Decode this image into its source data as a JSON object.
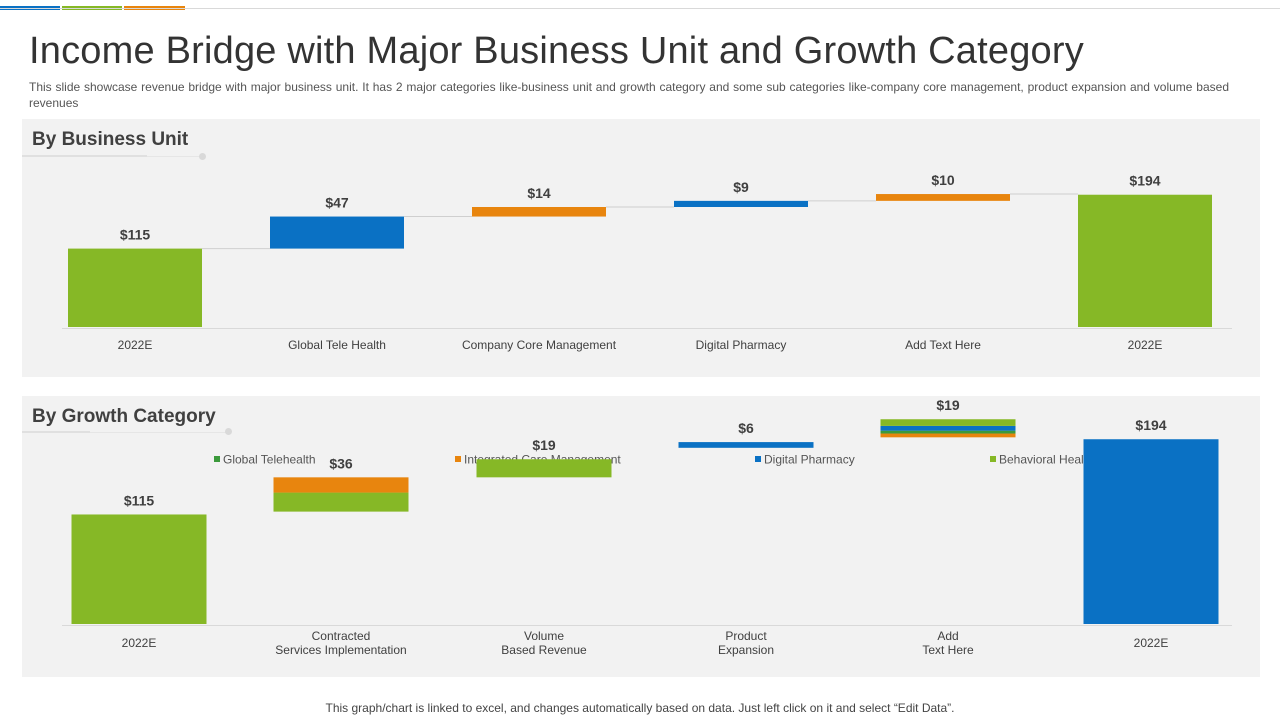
{
  "header": {
    "title": "Income Bridge with Major Business Unit and Growth Category",
    "subtitle": "This slide showcase revenue  bridge with major business unit. It has 2 major categories like-business unit and growth category and some sub categories like-company core management, product expansion and volume  based revenues"
  },
  "colors": {
    "green": "#86b826",
    "blue": "#0a71c4",
    "orange": "#e8850e",
    "dark_green": "#3c9a3c",
    "panel_bg": "#f2f2f2"
  },
  "chart_data": [
    {
      "type": "bar",
      "subtype": "waterfall",
      "title": "By Business Unit",
      "ylim": [
        0,
        220
      ],
      "categories": [
        "2022E",
        "Global Tele Health",
        "Company Core Management",
        "Digital Pharmacy",
        "Add Text Here",
        "2022E"
      ],
      "values": [
        115,
        47,
        14,
        9,
        10,
        194
      ],
      "labels": [
        "$115",
        "$47",
        "$14",
        "$9",
        "$10",
        "$194"
      ],
      "kinds": [
        "total",
        "delta",
        "delta",
        "delta",
        "delta",
        "total"
      ],
      "bar_colors": [
        "green",
        "blue",
        "orange",
        "blue",
        "orange",
        "green"
      ]
    },
    {
      "type": "bar",
      "subtype": "stacked-waterfall",
      "title": "By Growth Category",
      "ylim": [
        0,
        210
      ],
      "legend": [
        {
          "name": "Global Telehealth",
          "color": "dark_green"
        },
        {
          "name": "Integrated Care Management",
          "color": "orange"
        },
        {
          "name": "Digital Pharmacy",
          "color": "blue"
        },
        {
          "name": "Behavioral Health",
          "color": "green"
        }
      ],
      "categories": [
        [
          "2022E"
        ],
        [
          "Contracted",
          "Services Implementation"
        ],
        [
          "Volume",
          "Based Revenue"
        ],
        [
          "Product",
          "Expansion"
        ],
        [
          "Add",
          "Text Here"
        ],
        [
          "2022E"
        ]
      ],
      "labels": [
        "$115",
        "$36",
        "$19",
        "$6",
        "$19",
        "$194"
      ],
      "kinds": [
        "total",
        "delta",
        "delta",
        "delta",
        "delta",
        "total"
      ],
      "bars": [
        [
          {
            "series": "Behavioral Health",
            "value": 115,
            "color": "green"
          }
        ],
        [
          {
            "series": "Behavioral Health",
            "value": 20,
            "color": "green"
          },
          {
            "series": "Integrated Care Management",
            "value": 16,
            "color": "orange"
          }
        ],
        [
          {
            "series": "Behavioral Health",
            "value": 19,
            "color": "green"
          }
        ],
        [
          {
            "series": "Digital Pharmacy",
            "value": 6,
            "color": "blue"
          }
        ],
        [
          {
            "series": "Integrated Care Management",
            "value": 4,
            "color": "orange"
          },
          {
            "series": "Global Telehealth",
            "value": 3,
            "color": "dark_green"
          },
          {
            "series": "Digital Pharmacy",
            "value": 5,
            "color": "blue"
          },
          {
            "series": "Behavioral Health",
            "value": 7,
            "color": "green"
          }
        ],
        [
          {
            "series": "Digital Pharmacy",
            "value": 194,
            "color": "blue"
          }
        ]
      ]
    }
  ],
  "footer": "This graph/chart is linked to excel,  and changes automatically based on data. Just left click on it and select “Edit Data”."
}
